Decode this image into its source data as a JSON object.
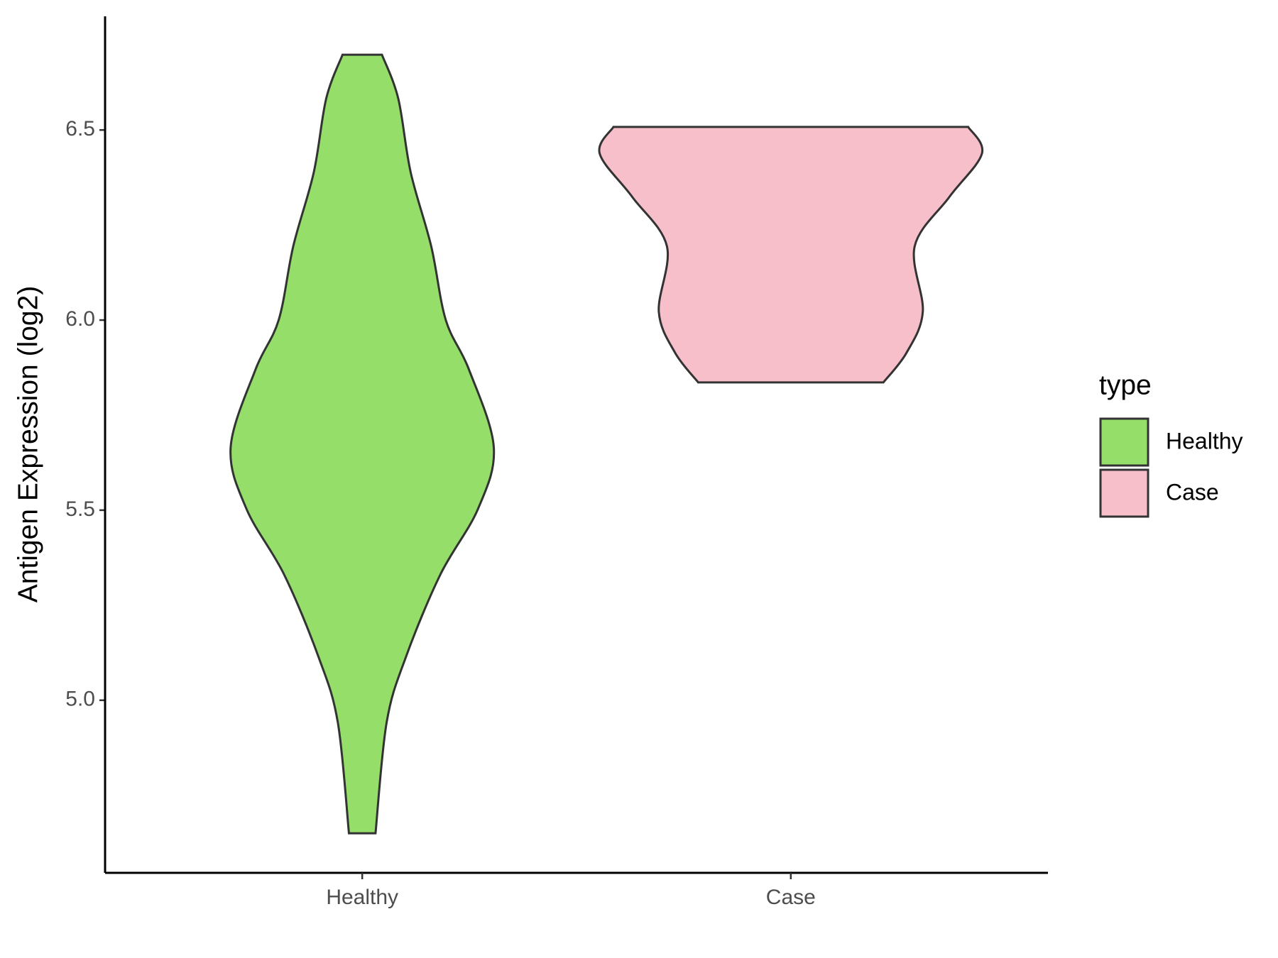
{
  "chart_data": {
    "type": "violin",
    "y_label": "Antigen Expression (log2)",
    "categories": [
      "Healthy",
      "Case"
    ],
    "legend_title": "type",
    "series": [
      {
        "name": "Healthy",
        "color": "#95de6a",
        "y": [
          6.698,
          6.583,
          6.389,
          6.194,
          6.0,
          5.87,
          5.665,
          5.503,
          5.33,
          5.114,
          4.942,
          4.65
        ],
        "width": [
          0.046,
          0.084,
          0.113,
          0.161,
          0.195,
          0.249,
          0.307,
          0.27,
          0.182,
          0.102,
          0.057,
          0.031
        ]
      },
      {
        "name": "Case",
        "color": "#f7bfca",
        "y": [
          6.508,
          6.438,
          6.324,
          6.194,
          6.022,
          5.914,
          5.836
        ],
        "width": [
          0.414,
          0.446,
          0.37,
          0.289,
          0.308,
          0.27,
          0.216
        ]
      }
    ],
    "ylim": [
      4.546,
      6.799
    ],
    "yticks": [
      {
        "value": 5,
        "label": "5.0"
      },
      5.5,
      {
        "value": 6,
        "label": "6.0"
      },
      6.5
    ],
    "legend_position": "right"
  }
}
